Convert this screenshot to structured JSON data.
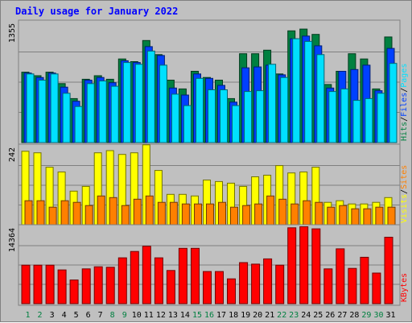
{
  "title": "Daily usage for January 2022",
  "colors": {
    "hits": "#008040",
    "files": "#0040ff",
    "pages": "#00e0ff",
    "visits": "#ffff00",
    "sites": "#ff8000",
    "kbytes": "#ff0000",
    "weekend_label": "#008040",
    "weekday_label": "#000000",
    "grid": "#808080",
    "background": "#c0c0c0"
  },
  "chart_data": [
    {
      "type": "bar",
      "panel": "hits",
      "title": "Daily usage for January 2022",
      "y_max_label": "1355",
      "ylim": [
        0,
        1355
      ],
      "grid": true,
      "categories": [
        "1",
        "2",
        "3",
        "4",
        "5",
        "6",
        "7",
        "8",
        "9",
        "10",
        "11",
        "12",
        "13",
        "14",
        "15",
        "16",
        "17",
        "18",
        "19",
        "20",
        "21",
        "22",
        "23",
        "24",
        "25",
        "26",
        "27",
        "28",
        "29",
        "30",
        "31"
      ],
      "right_labels": [
        "Hits",
        "Files",
        "Pages"
      ],
      "series": [
        {
          "name": "Hits",
          "values": [
            800,
            760,
            800,
            670,
            500,
            720,
            760,
            720,
            950,
            920,
            1160,
            1000,
            710,
            610,
            810,
            740,
            710,
            500,
            1010,
            1010,
            1050,
            780,
            1270,
            1290,
            1230,
            660,
            810,
            1010,
            950,
            610,
            1200
          ]
        },
        {
          "name": "Files",
          "values": [
            790,
            740,
            790,
            630,
            470,
            710,
            740,
            680,
            930,
            910,
            1090,
            990,
            620,
            540,
            780,
            730,
            650,
            460,
            850,
            860,
            880,
            770,
            1180,
            1210,
            1100,
            620,
            810,
            830,
            880,
            590,
            1070
          ]
        },
        {
          "name": "Pages",
          "values": [
            780,
            710,
            780,
            560,
            410,
            670,
            700,
            640,
            910,
            890,
            1040,
            880,
            550,
            420,
            730,
            600,
            600,
            420,
            580,
            590,
            890,
            740,
            1180,
            1150,
            1000,
            580,
            610,
            480,
            500,
            560,
            900
          ]
        }
      ]
    },
    {
      "type": "bar",
      "panel": "visits",
      "y_max_label": "242",
      "ylim": [
        0,
        242
      ],
      "grid": true,
      "right_labels": [
        "Visits",
        "Sites"
      ],
      "series": [
        {
          "name": "Visits",
          "values": [
            230,
            225,
            180,
            165,
            105,
            120,
            225,
            232,
            220,
            225,
            250,
            170,
            95,
            95,
            90,
            140,
            135,
            130,
            120,
            150,
            155,
            185,
            162,
            165,
            180,
            70,
            75,
            65,
            65,
            70,
            85
          ]
        },
        {
          "name": "Sites",
          "values": [
            75,
            75,
            55,
            75,
            70,
            60,
            90,
            85,
            60,
            80,
            90,
            70,
            70,
            65,
            65,
            65,
            70,
            55,
            60,
            65,
            90,
            80,
            65,
            75,
            70,
            55,
            60,
            50,
            50,
            55,
            55
          ]
        }
      ]
    },
    {
      "type": "bar",
      "panel": "kbytes",
      "y_max_label": "14364",
      "ylim": [
        0,
        14364
      ],
      "grid": true,
      "right_labels": [
        "KBytes"
      ],
      "series": [
        {
          "name": "KBytes",
          "values": [
            7300,
            7300,
            7300,
            6400,
            4500,
            6600,
            7000,
            6900,
            8700,
            9900,
            10900,
            8700,
            6300,
            10500,
            10500,
            6100,
            6100,
            4700,
            7800,
            7500,
            8500,
            7300,
            14400,
            14600,
            14200,
            6600,
            10400,
            6700,
            8800,
            5800,
            12600
          ]
        }
      ]
    }
  ]
}
